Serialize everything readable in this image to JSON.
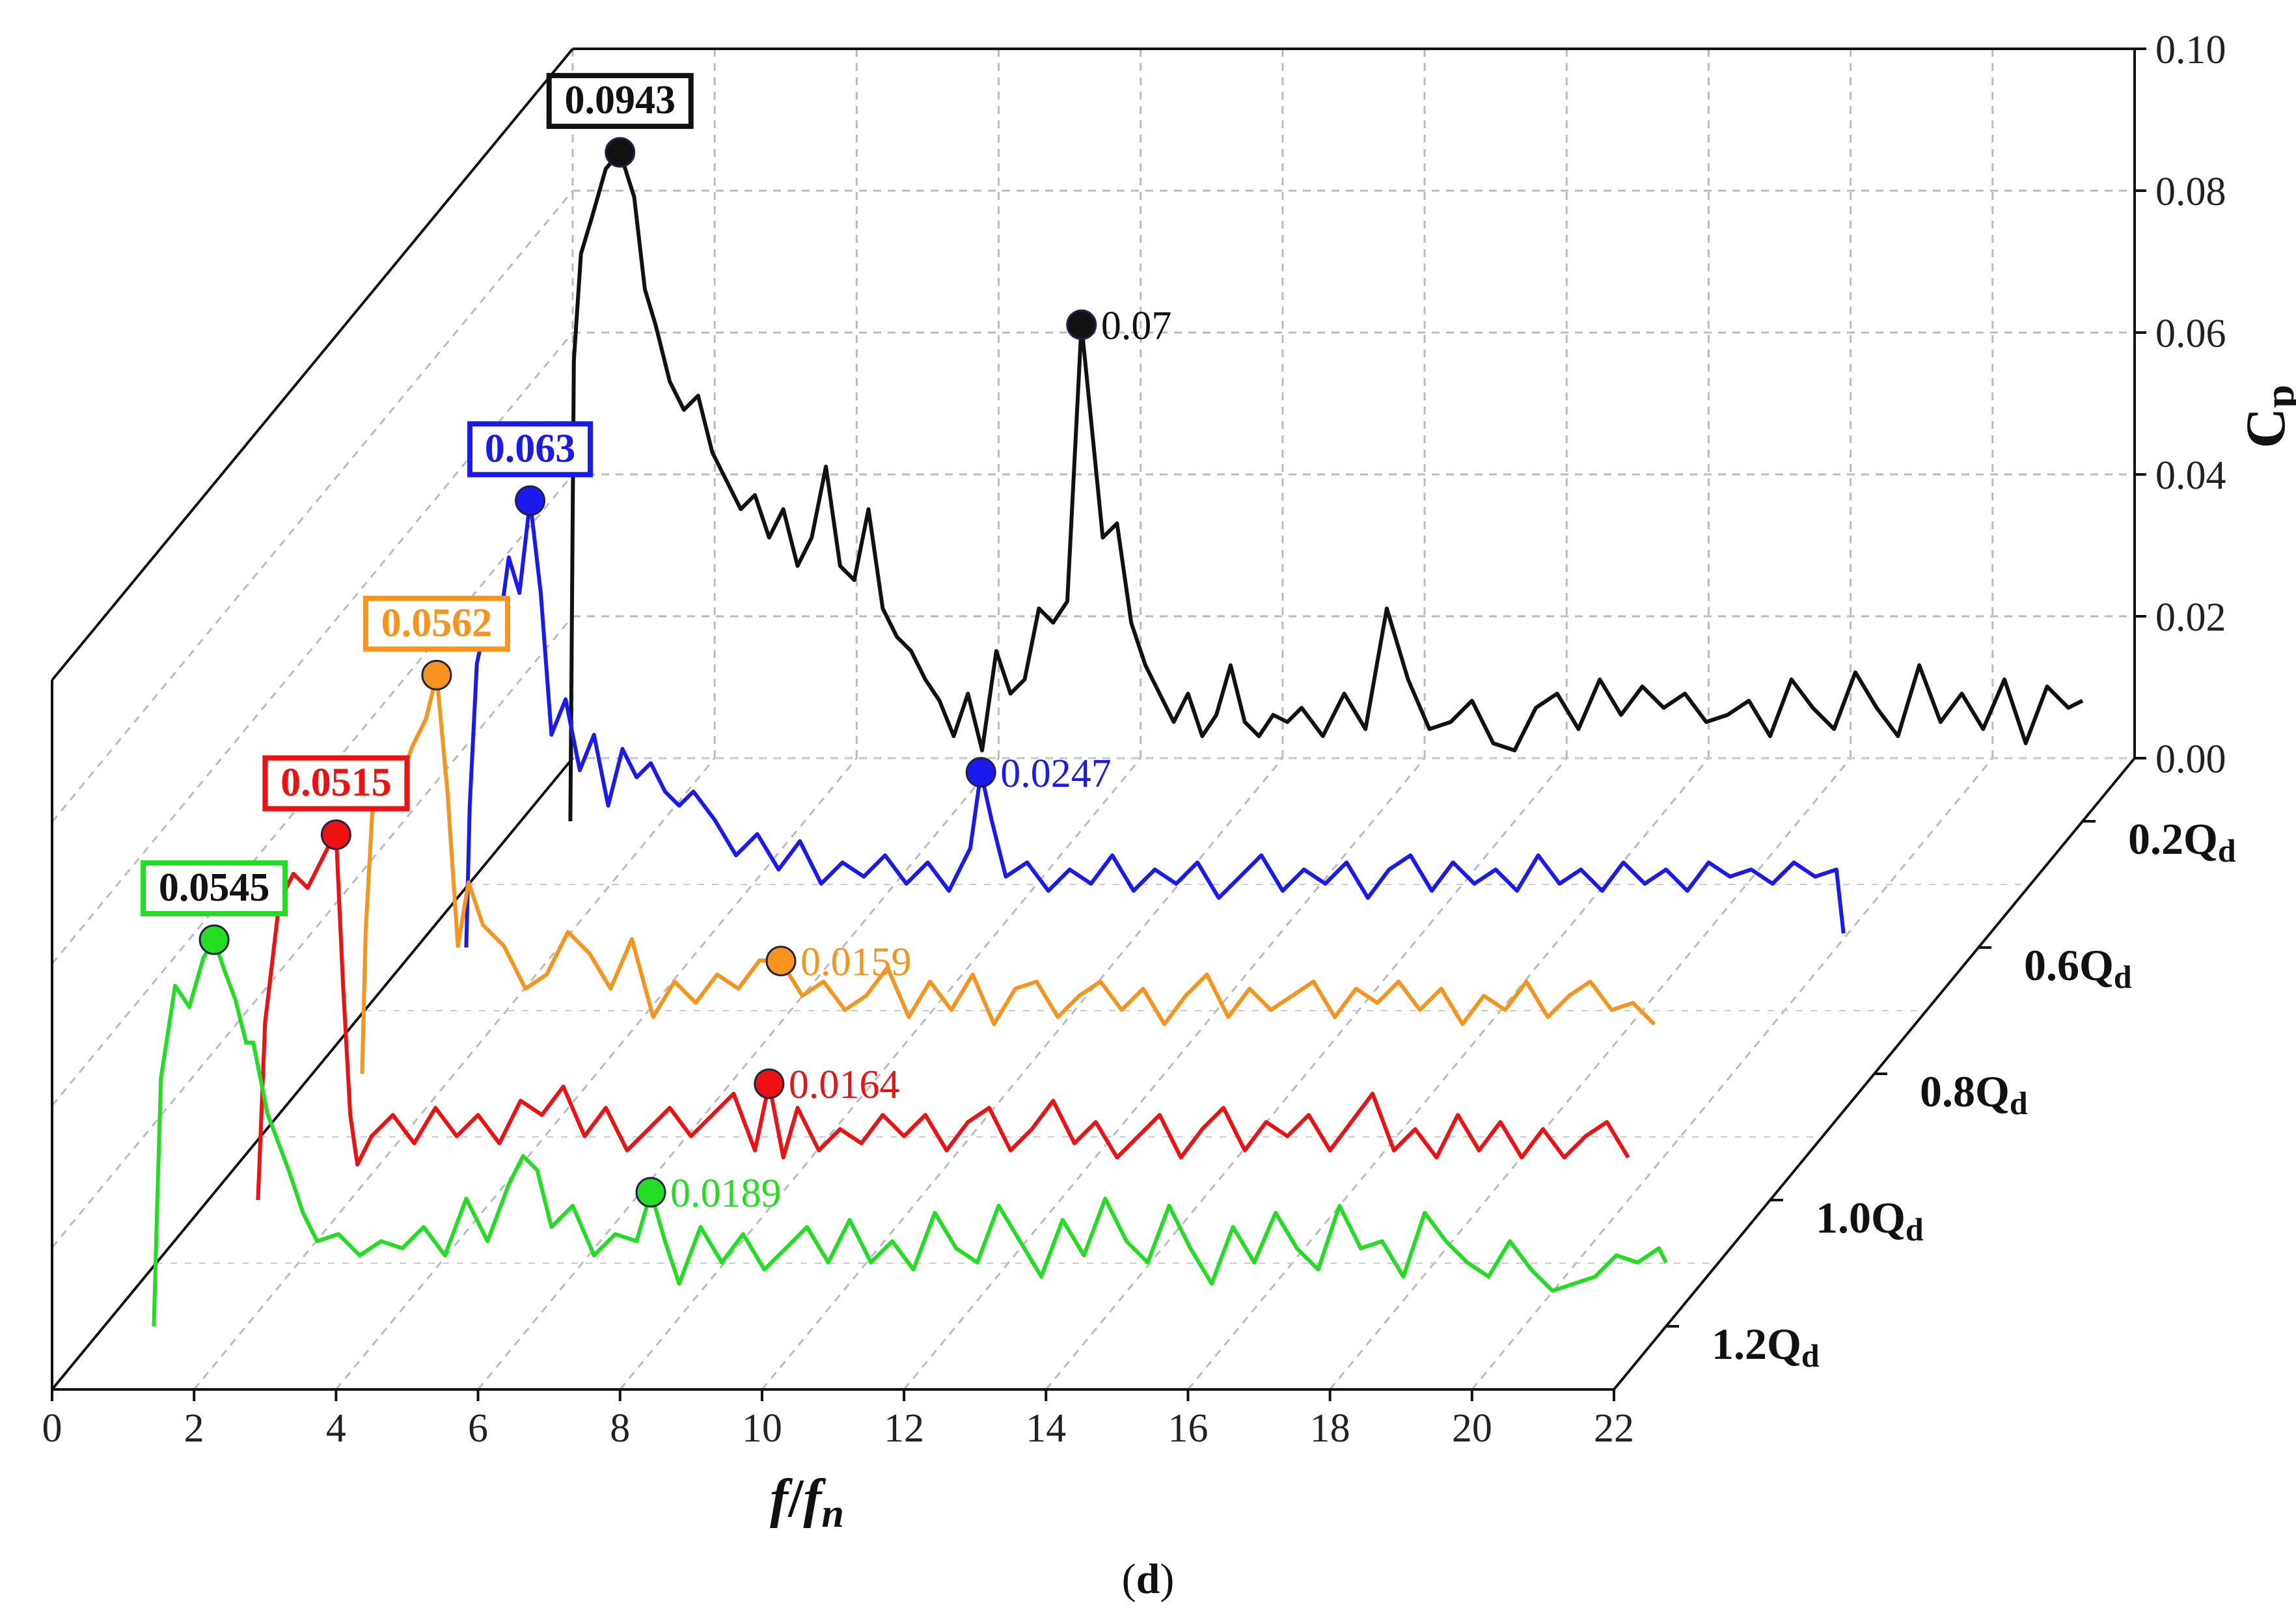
{
  "chart_data": {
    "type": "line",
    "subtype": "3d-waterfall",
    "caption": "(d)",
    "caption_open": "(",
    "caption_letter": "d",
    "caption_close": ")",
    "xlabel_italic_f": "f",
    "xlabel_slash": "/",
    "xlabel_italic_fn": "f",
    "xlabel_sub": "n",
    "ylabel_main": "C",
    "ylabel_sub": "p",
    "xlim": [
      0,
      22
    ],
    "ylim": [
      0,
      0.1
    ],
    "x_ticks": [
      "0",
      "2",
      "4",
      "6",
      "8",
      "10",
      "12",
      "14",
      "16",
      "18",
      "20",
      "22"
    ],
    "y_ticks": [
      "0.00",
      "0.02",
      "0.04",
      "0.06",
      "0.08",
      "0.10"
    ],
    "grid": true,
    "series": [
      {
        "name": "1.2Q",
        "name_main": "1.2Q",
        "name_sub": "d",
        "color": "#22dd22",
        "depth_index": 0,
        "x": [
          0.7,
          0.75,
          0.8,
          1.0,
          1.2,
          1.4,
          1.55,
          1.7,
          1.85,
          2.0,
          2.1,
          2.3,
          2.6,
          2.8,
          3.0,
          3.3,
          3.6,
          3.9,
          4.2,
          4.5,
          4.8,
          5.1,
          5.4,
          5.7,
          5.9,
          6.1,
          6.3,
          6.6,
          6.9,
          7.2,
          7.5,
          7.7,
          7.9,
          8.1,
          8.4,
          8.7,
          9.0,
          9.3,
          9.6,
          9.9,
          10.2,
          10.5,
          10.8,
          11.1,
          11.4,
          11.7,
          12.0,
          12.3,
          12.6,
          12.9,
          13.2,
          13.5,
          13.8,
          14.1,
          14.4,
          14.7,
          15.0,
          15.3,
          15.6,
          15.9,
          16.2,
          16.5,
          16.8,
          17.1,
          17.4,
          17.7,
          18.0,
          18.3,
          18.6,
          18.9,
          19.2,
          19.5,
          19.8,
          20.1,
          20.4,
          20.7,
          21.0,
          21.3,
          21.6,
          21.9,
          22.0
        ],
        "y": [
          0.0,
          0.018,
          0.035,
          0.048,
          0.045,
          0.052,
          0.0545,
          0.05,
          0.046,
          0.04,
          0.04,
          0.03,
          0.022,
          0.016,
          0.012,
          0.013,
          0.01,
          0.012,
          0.011,
          0.014,
          0.01,
          0.018,
          0.012,
          0.02,
          0.024,
          0.022,
          0.014,
          0.017,
          0.01,
          0.013,
          0.012,
          0.0189,
          0.012,
          0.006,
          0.014,
          0.009,
          0.013,
          0.008,
          0.011,
          0.014,
          0.009,
          0.015,
          0.009,
          0.012,
          0.008,
          0.016,
          0.011,
          0.009,
          0.017,
          0.012,
          0.007,
          0.015,
          0.01,
          0.018,
          0.012,
          0.009,
          0.017,
          0.011,
          0.006,
          0.014,
          0.009,
          0.016,
          0.011,
          0.008,
          0.017,
          0.011,
          0.012,
          0.007,
          0.016,
          0.012,
          0.009,
          0.007,
          0.012,
          0.008,
          0.005,
          0.006,
          0.007,
          0.01,
          0.009,
          0.011,
          0.009
        ],
        "annotations": [
          {
            "x": 1.55,
            "y": 0.0545,
            "label": "0.0545",
            "boxed": true
          },
          {
            "x": 7.7,
            "y": 0.0189,
            "label": "0.0189",
            "boxed": false
          }
        ]
      },
      {
        "name": "1.0Q",
        "name_main": "1.0Q",
        "name_sub": "d",
        "color": "#ee1111",
        "depth_index": 1,
        "x": [
          0.7,
          0.8,
          1.0,
          1.2,
          1.4,
          1.55,
          1.7,
          1.8,
          1.9,
          2.0,
          2.1,
          2.3,
          2.6,
          2.9,
          3.2,
          3.5,
          3.8,
          4.1,
          4.4,
          4.7,
          5.0,
          5.3,
          5.6,
          5.9,
          6.2,
          6.5,
          6.8,
          7.1,
          7.4,
          7.7,
          7.9,
          8.1,
          8.3,
          8.6,
          8.9,
          9.2,
          9.5,
          9.8,
          10.1,
          10.4,
          10.7,
          11.0,
          11.3,
          11.6,
          11.9,
          12.2,
          12.5,
          12.8,
          13.1,
          13.4,
          13.7,
          14.0,
          14.3,
          14.6,
          14.9,
          15.2,
          15.5,
          15.8,
          16.1,
          16.4,
          16.7,
          17.0,
          17.3,
          17.6,
          17.9,
          18.2,
          18.5,
          18.8,
          19.1,
          19.4,
          19.7,
          20.0
        ],
        "y": [
          0.0,
          0.025,
          0.042,
          0.046,
          0.044,
          0.047,
          0.05,
          0.0515,
          0.03,
          0.012,
          0.005,
          0.009,
          0.012,
          0.008,
          0.013,
          0.009,
          0.012,
          0.008,
          0.014,
          0.012,
          0.016,
          0.009,
          0.013,
          0.007,
          0.01,
          0.013,
          0.009,
          0.012,
          0.015,
          0.007,
          0.0164,
          0.006,
          0.013,
          0.007,
          0.01,
          0.008,
          0.012,
          0.009,
          0.012,
          0.007,
          0.011,
          0.013,
          0.007,
          0.01,
          0.014,
          0.008,
          0.011,
          0.006,
          0.009,
          0.012,
          0.006,
          0.01,
          0.013,
          0.007,
          0.011,
          0.009,
          0.012,
          0.007,
          0.011,
          0.015,
          0.007,
          0.01,
          0.006,
          0.012,
          0.007,
          0.011,
          0.006,
          0.01,
          0.006,
          0.009,
          0.011,
          0.006
        ],
        "annotations": [
          {
            "x": 1.8,
            "y": 0.0515,
            "label": "0.0515",
            "boxed": true
          },
          {
            "x": 7.9,
            "y": 0.0164,
            "label": "0.0164",
            "boxed": false
          }
        ]
      },
      {
        "name": "0.8Q",
        "name_main": "0.8Q",
        "name_sub": "d",
        "color": "#f7941d",
        "depth_index": 2,
        "x": [
          0.7,
          0.75,
          0.85,
          1.0,
          1.2,
          1.4,
          1.6,
          1.75,
          1.9,
          2.05,
          2.2,
          2.4,
          2.7,
          3.0,
          3.3,
          3.6,
          3.9,
          4.2,
          4.5,
          4.8,
          5.1,
          5.4,
          5.7,
          6.0,
          6.3,
          6.6,
          6.9,
          7.2,
          7.5,
          7.8,
          8.1,
          8.4,
          8.7,
          9.0,
          9.3,
          9.6,
          9.9,
          10.2,
          10.5,
          10.8,
          11.1,
          11.4,
          11.7,
          12.0,
          12.3,
          12.6,
          12.9,
          13.2,
          13.5,
          13.8,
          14.1,
          14.4,
          14.7,
          15.0,
          15.3,
          15.6,
          15.9,
          16.2,
          16.5,
          16.8,
          17.1,
          17.4,
          17.7,
          18.0,
          18.3,
          18.6,
          18.9
        ],
        "y": [
          0.0,
          0.02,
          0.038,
          0.044,
          0.04,
          0.046,
          0.05,
          0.0562,
          0.04,
          0.018,
          0.027,
          0.021,
          0.018,
          0.012,
          0.014,
          0.02,
          0.017,
          0.012,
          0.019,
          0.008,
          0.013,
          0.01,
          0.014,
          0.012,
          0.016,
          0.0159,
          0.011,
          0.013,
          0.009,
          0.011,
          0.015,
          0.008,
          0.013,
          0.009,
          0.014,
          0.007,
          0.012,
          0.013,
          0.008,
          0.011,
          0.013,
          0.009,
          0.012,
          0.007,
          0.011,
          0.014,
          0.008,
          0.012,
          0.009,
          0.011,
          0.013,
          0.008,
          0.012,
          0.01,
          0.013,
          0.009,
          0.012,
          0.007,
          0.011,
          0.009,
          0.013,
          0.008,
          0.011,
          0.013,
          0.009,
          0.01,
          0.007
        ],
        "annotations": [
          {
            "x": 1.75,
            "y": 0.0562,
            "label": "0.0562",
            "boxed": true
          },
          {
            "x": 6.6,
            "y": 0.0159,
            "label": "0.0159",
            "boxed": false
          }
        ]
      },
      {
        "name": "0.6Q",
        "name_main": "0.6Q",
        "name_sub": "d",
        "color": "#1a1aee",
        "depth_index": 3,
        "x": [
          0.7,
          0.75,
          0.85,
          1.0,
          1.15,
          1.3,
          1.45,
          1.6,
          1.75,
          1.9,
          2.1,
          2.3,
          2.5,
          2.7,
          2.9,
          3.1,
          3.3,
          3.5,
          3.7,
          3.9,
          4.2,
          4.5,
          4.8,
          5.1,
          5.4,
          5.7,
          6.0,
          6.3,
          6.6,
          6.9,
          7.2,
          7.5,
          7.8,
          7.95,
          8.1,
          8.3,
          8.6,
          8.9,
          9.2,
          9.5,
          9.8,
          10.1,
          10.4,
          10.7,
          11.0,
          11.3,
          11.6,
          11.9,
          12.2,
          12.5,
          12.8,
          13.1,
          13.4,
          13.7,
          14.0,
          14.3,
          14.6,
          14.9,
          15.2,
          15.5,
          15.8,
          16.1,
          16.4,
          16.7,
          17.0,
          17.3,
          17.6,
          17.9,
          18.2,
          18.5,
          18.8,
          19.1,
          19.4,
          19.7,
          20.0,
          20.1
        ],
        "y": [
          0.0,
          0.02,
          0.04,
          0.047,
          0.044,
          0.055,
          0.05,
          0.063,
          0.05,
          0.03,
          0.035,
          0.025,
          0.03,
          0.02,
          0.028,
          0.024,
          0.026,
          0.022,
          0.02,
          0.022,
          0.018,
          0.013,
          0.016,
          0.011,
          0.015,
          0.009,
          0.012,
          0.01,
          0.013,
          0.009,
          0.012,
          0.008,
          0.014,
          0.0247,
          0.018,
          0.01,
          0.012,
          0.008,
          0.011,
          0.009,
          0.013,
          0.008,
          0.011,
          0.009,
          0.012,
          0.007,
          0.01,
          0.013,
          0.008,
          0.011,
          0.009,
          0.012,
          0.007,
          0.011,
          0.013,
          0.008,
          0.012,
          0.009,
          0.011,
          0.008,
          0.013,
          0.009,
          0.011,
          0.008,
          0.012,
          0.009,
          0.011,
          0.008,
          0.012,
          0.01,
          0.011,
          0.009,
          0.012,
          0.01,
          0.011,
          0.002
        ],
        "annotations": [
          {
            "x": 1.6,
            "y": 0.063,
            "label": "0.063",
            "boxed": true
          },
          {
            "x": 7.95,
            "y": 0.0247,
            "label": "0.0247",
            "boxed": false
          }
        ]
      },
      {
        "name": "0.2Q",
        "name_main": "0.2Q",
        "name_sub": "d",
        "color": "#111111",
        "depth_index": 4,
        "x": [
          0.7,
          0.75,
          0.85,
          1.0,
          1.2,
          1.4,
          1.6,
          1.75,
          1.9,
          2.1,
          2.3,
          2.5,
          2.7,
          2.9,
          3.1,
          3.3,
          3.5,
          3.7,
          3.9,
          4.1,
          4.3,
          4.5,
          4.7,
          4.9,
          5.1,
          5.3,
          5.5,
          5.7,
          5.9,
          6.1,
          6.3,
          6.5,
          6.7,
          6.9,
          7.1,
          7.3,
          7.5,
          7.7,
          7.9,
          8.05,
          8.2,
          8.4,
          8.6,
          8.8,
          9.0,
          9.2,
          9.4,
          9.6,
          9.8,
          10.0,
          10.2,
          10.4,
          10.6,
          10.8,
          11.0,
          11.3,
          11.6,
          11.9,
          12.2,
          12.5,
          12.8,
          13.1,
          13.4,
          13.7,
          14.0,
          14.3,
          14.6,
          14.9,
          15.2,
          15.5,
          15.8,
          16.1,
          16.4,
          16.7,
          17.0,
          17.3,
          17.6,
          17.9,
          18.2,
          18.5,
          18.8,
          19.1,
          19.4,
          19.7,
          20.0,
          20.3,
          20.6,
          20.9,
          21.2,
          21.5,
          21.8,
          22.0
        ],
        "y": [
          0.0,
          0.065,
          0.08,
          0.085,
          0.092,
          0.0943,
          0.088,
          0.075,
          0.07,
          0.062,
          0.058,
          0.06,
          0.052,
          0.048,
          0.044,
          0.046,
          0.04,
          0.044,
          0.036,
          0.04,
          0.05,
          0.036,
          0.034,
          0.044,
          0.03,
          0.026,
          0.024,
          0.02,
          0.017,
          0.012,
          0.018,
          0.01,
          0.024,
          0.018,
          0.02,
          0.03,
          0.028,
          0.031,
          0.07,
          0.055,
          0.04,
          0.042,
          0.028,
          0.022,
          0.018,
          0.014,
          0.018,
          0.012,
          0.015,
          0.022,
          0.014,
          0.012,
          0.015,
          0.014,
          0.016,
          0.012,
          0.018,
          0.013,
          0.03,
          0.02,
          0.013,
          0.014,
          0.017,
          0.011,
          0.01,
          0.016,
          0.018,
          0.013,
          0.02,
          0.015,
          0.019,
          0.016,
          0.018,
          0.014,
          0.015,
          0.017,
          0.012,
          0.02,
          0.016,
          0.013,
          0.021,
          0.016,
          0.012,
          0.022,
          0.014,
          0.018,
          0.013,
          0.02,
          0.011,
          0.019,
          0.016,
          0.017
        ],
        "annotations": [
          {
            "x": 1.4,
            "y": 0.0943,
            "label": "0.0943",
            "boxed": true
          },
          {
            "x": 7.9,
            "y": 0.07,
            "label": "0.07",
            "boxed": false
          }
        ]
      }
    ]
  }
}
